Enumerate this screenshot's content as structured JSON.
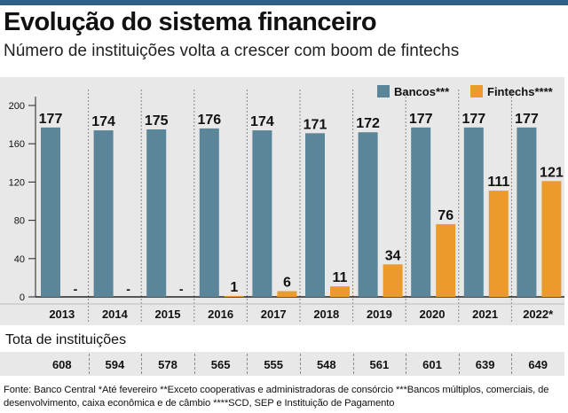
{
  "header": {
    "title": "Evolução do sistema financeiro",
    "subtitle": "Número de instituições volta a crescer com boom de fintechs"
  },
  "legend": {
    "bancos": {
      "label": "Bancos***",
      "color": "#5b8599"
    },
    "fintechs": {
      "label": "Fintechs****",
      "color": "#ec9a2c"
    }
  },
  "chart_data": {
    "type": "bar",
    "categories": [
      "2013",
      "2014",
      "2015",
      "2016",
      "2017",
      "2018",
      "2019",
      "2020",
      "2021",
      "2022*"
    ],
    "series": [
      {
        "name": "Bancos***",
        "values": [
          177,
          174,
          175,
          176,
          174,
          171,
          172,
          177,
          177,
          177
        ],
        "labels": [
          "177",
          "174",
          "175",
          "176",
          "174",
          "171",
          "172",
          "177",
          "177",
          "177"
        ]
      },
      {
        "name": "Fintechs****",
        "values": [
          0,
          0,
          0,
          1,
          6,
          11,
          34,
          76,
          111,
          121
        ],
        "labels": [
          "-",
          "-",
          "-",
          "1",
          "6",
          "11",
          "34",
          "76",
          "111",
          "121"
        ]
      }
    ],
    "ylim": [
      0,
      200
    ],
    "yticks": [
      0,
      40,
      80,
      120,
      160,
      200
    ],
    "title": "Evolução do sistema financeiro",
    "subtitle": "Número de instituições volta a crescer com boom de fintechs",
    "xlabel": "",
    "ylabel": "",
    "legend_position": "top-right",
    "grid": false
  },
  "totals": {
    "label": "Tota de instituições",
    "values": [
      "608",
      "594",
      "578",
      "565",
      "555",
      "548",
      "561",
      "601",
      "639",
      "649"
    ]
  },
  "footnote": "Fonte: Banco Central *Até fevereiro **Exceto cooperativas e administradoras de consórcio ***Bancos múltiplos, comerciais, de desenvolvimento, caixa econômica e de câmbio ****SCD, SEP e Instituição de Pagamento"
}
